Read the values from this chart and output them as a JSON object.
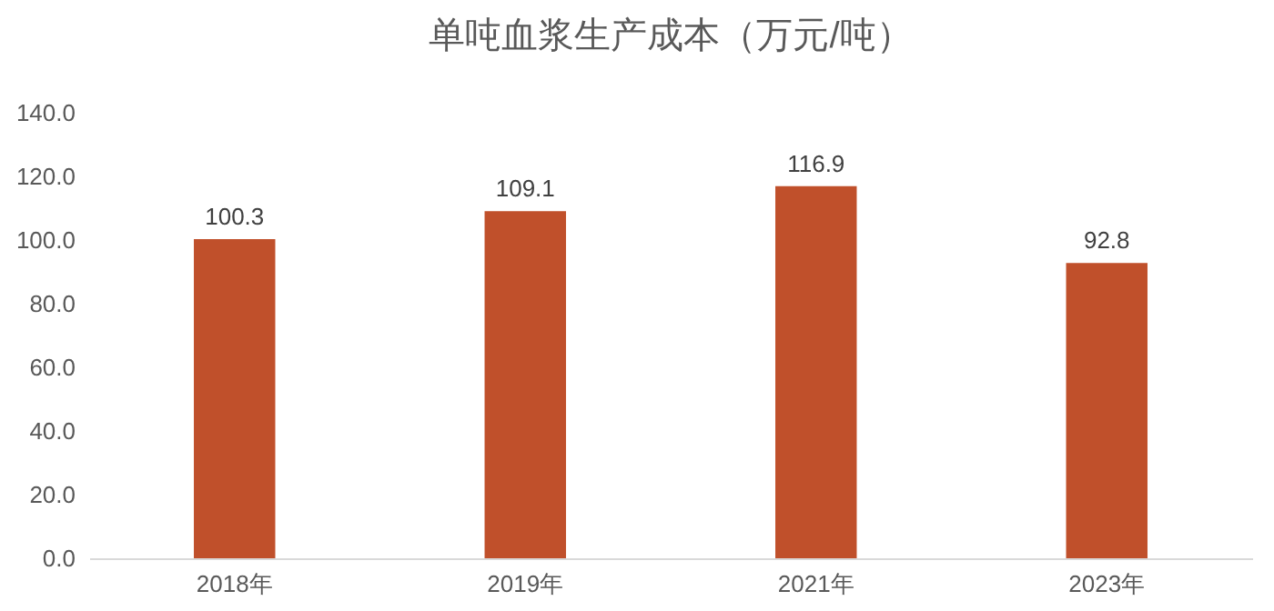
{
  "chart_data": {
    "type": "bar",
    "title": "单吨血浆生产成本（万元/吨）",
    "categories": [
      "2018年",
      "2019年",
      "2021年",
      "2023年"
    ],
    "values": [
      100.3,
      109.1,
      116.9,
      92.8
    ],
    "color": "#c0502b",
    "ylim": [
      0,
      140
    ],
    "yticks": [
      {
        "value": 0,
        "label": "0.0"
      },
      {
        "value": 20,
        "label": "20.0"
      },
      {
        "value": 40,
        "label": "40.0"
      },
      {
        "value": 60,
        "label": "60.0"
      },
      {
        "value": 80,
        "label": "80.0"
      },
      {
        "value": 100,
        "label": "100.0"
      },
      {
        "value": 120,
        "label": "120.0"
      },
      {
        "value": 140,
        "label": "140.0"
      }
    ],
    "data_labels": true,
    "grid": false
  }
}
